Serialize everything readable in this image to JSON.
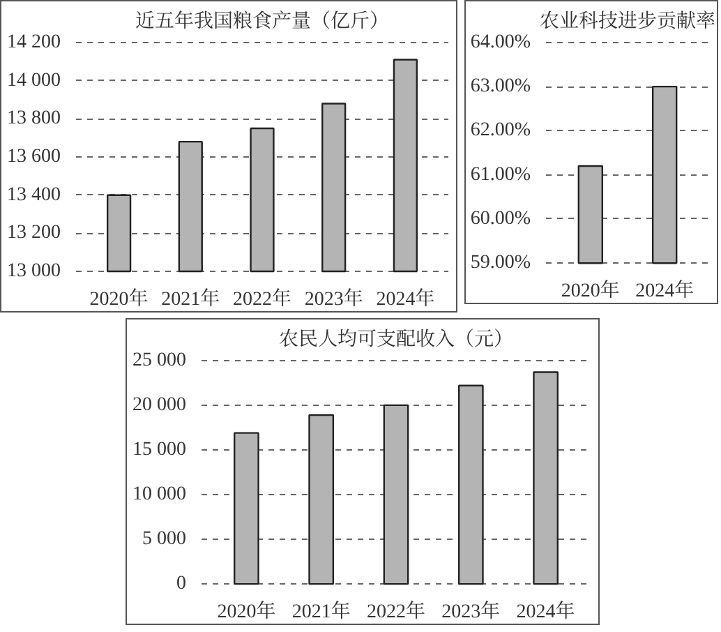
{
  "chart_data": [
    {
      "type": "bar",
      "title": "近五年我国粮食产量（亿斤）",
      "categories": [
        "2020年",
        "2021年",
        "2022年",
        "2023年",
        "2024年"
      ],
      "values": [
        13400,
        13680,
        13750,
        13880,
        14110
      ],
      "color": "#b4b4b4",
      "ylim": [
        13000,
        14200
      ],
      "yticks": [
        {
          "value": 13000,
          "label": "13 000"
        },
        {
          "value": 13200,
          "label": "13 200"
        },
        {
          "value": 13400,
          "label": "13 400"
        },
        {
          "value": 13600,
          "label": "13 600"
        },
        {
          "value": 13800,
          "label": "13 800"
        },
        {
          "value": 14000,
          "label": "14 000"
        },
        {
          "value": 14200,
          "label": "14 200"
        }
      ],
      "grid": "y"
    },
    {
      "type": "bar",
      "title": "农业科技进步贡献率",
      "categories": [
        "2020年",
        "2024年"
      ],
      "values": [
        61.2,
        63.0
      ],
      "color": "#b4b4b4",
      "ylim": [
        59,
        64
      ],
      "yticks": [
        {
          "value": 59,
          "label": "59.00%"
        },
        {
          "value": 60,
          "label": "60.00%"
        },
        {
          "value": 61,
          "label": "61.00%"
        },
        {
          "value": 62,
          "label": "62.00%"
        },
        {
          "value": 63,
          "label": "63.00%"
        },
        {
          "value": 64,
          "label": "64.00%"
        }
      ],
      "grid": "y"
    },
    {
      "type": "bar",
      "title": "农民人均可支配收入（元）",
      "categories": [
        "2020年",
        "2021年",
        "2022年",
        "2023年",
        "2024年"
      ],
      "values": [
        16900,
        18900,
        20000,
        22200,
        23700
      ],
      "color": "#b4b4b4",
      "ylim": [
        0,
        25000
      ],
      "yticks": [
        0,
        {
          "value": 5000,
          "label": "5 000"
        },
        {
          "value": 10000,
          "label": "10 000"
        },
        {
          "value": 15000,
          "label": "15 000"
        },
        {
          "value": 20000,
          "label": "20 000"
        },
        {
          "value": 25000,
          "label": "25 000"
        }
      ],
      "grid": "y"
    }
  ]
}
